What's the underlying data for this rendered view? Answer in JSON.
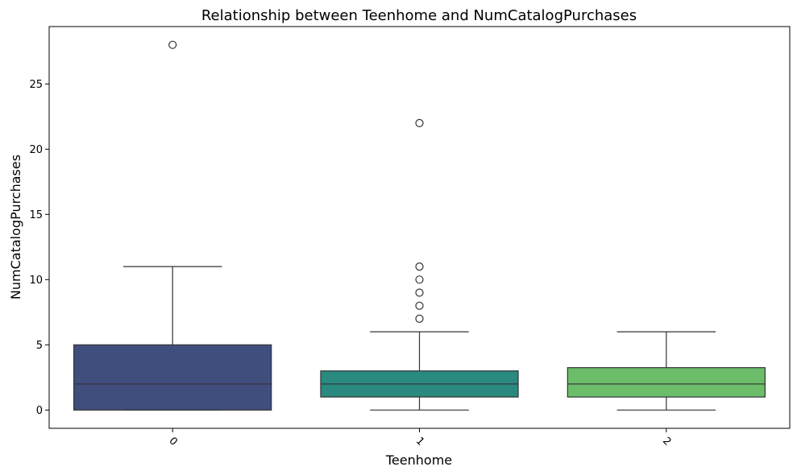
{
  "chart_data": {
    "type": "box",
    "title": "Relationship between Teenhome and NumCatalogPurchases",
    "xlabel": "Teenhome",
    "ylabel": "NumCatalogPurchases",
    "categories": [
      "0",
      "1",
      "2"
    ],
    "ylim": [
      -1.4,
      29.4
    ],
    "yticks": [
      0,
      5,
      10,
      15,
      20,
      25
    ],
    "x_tick_rotation": 45,
    "grid": false,
    "boxes": [
      {
        "category": "0",
        "color": "#404e7e",
        "whisker_low": 0,
        "q1": 0,
        "median": 2,
        "q3": 5,
        "whisker_high": 11,
        "outliers": [
          28
        ]
      },
      {
        "category": "1",
        "color": "#2a8a80",
        "whisker_low": 0,
        "q1": 1,
        "median": 2,
        "q3": 3,
        "whisker_high": 6,
        "outliers": [
          7,
          8,
          9,
          10,
          11,
          22
        ]
      },
      {
        "category": "2",
        "color": "#6bbd6a",
        "whisker_low": 0,
        "q1": 1,
        "median": 2,
        "q3": 3.25,
        "whisker_high": 6,
        "outliers": []
      }
    ]
  }
}
